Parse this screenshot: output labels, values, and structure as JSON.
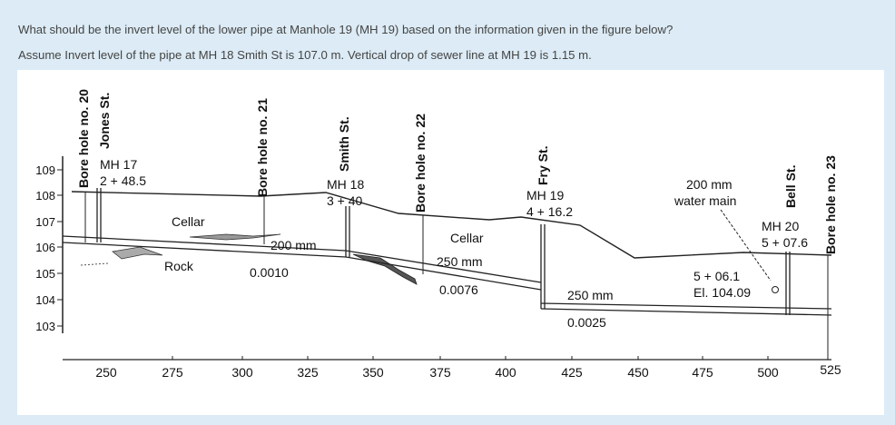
{
  "question": {
    "line1": "What should be the invert level of the lower pipe at Manhole 19 (MH 19) based on the information given in the figure below?",
    "line2": "Assume Invert level of the pipe at MH 18 Smith St is 107.0 m. Vertical drop of sewer line at MH 19 is 1.15 m."
  },
  "figure": {
    "y_ticks": [
      "109",
      "108",
      "107",
      "106",
      "105",
      "104",
      "103"
    ],
    "x_ticks": [
      "250",
      "275",
      "300",
      "325",
      "350",
      "375",
      "400",
      "425",
      "450",
      "475",
      "500",
      "525"
    ],
    "bore_holes": [
      "Bore hole no. 20",
      "Bore hole no. 21",
      "Bore hole no. 22",
      "Bore hole no. 23"
    ],
    "streets": [
      "Jones St.",
      "Smith St.",
      "Fry St.",
      "Bell St."
    ],
    "manholes": [
      {
        "name": "MH 17",
        "station": "2 + 48.5"
      },
      {
        "name": "MH 18",
        "station": "3 + 40"
      },
      {
        "name": "MH 19",
        "station": "4 + 16.2"
      },
      {
        "name": "MH 20",
        "station": "5 + 07.6"
      }
    ],
    "labels": {
      "cellar1": "Cellar",
      "cellar2": "Cellar",
      "rock": "Rock",
      "water_main_line1": "200 mm",
      "water_main_line2": "water main",
      "wm_station": "5 + 06.1",
      "wm_elevation": "El. 104.09"
    },
    "pipes": [
      {
        "size": "200 mm",
        "slope": "0.0010"
      },
      {
        "size": "250 mm",
        "slope": "0.0076"
      },
      {
        "size": "250 mm",
        "slope": "0.0025"
      }
    ]
  }
}
